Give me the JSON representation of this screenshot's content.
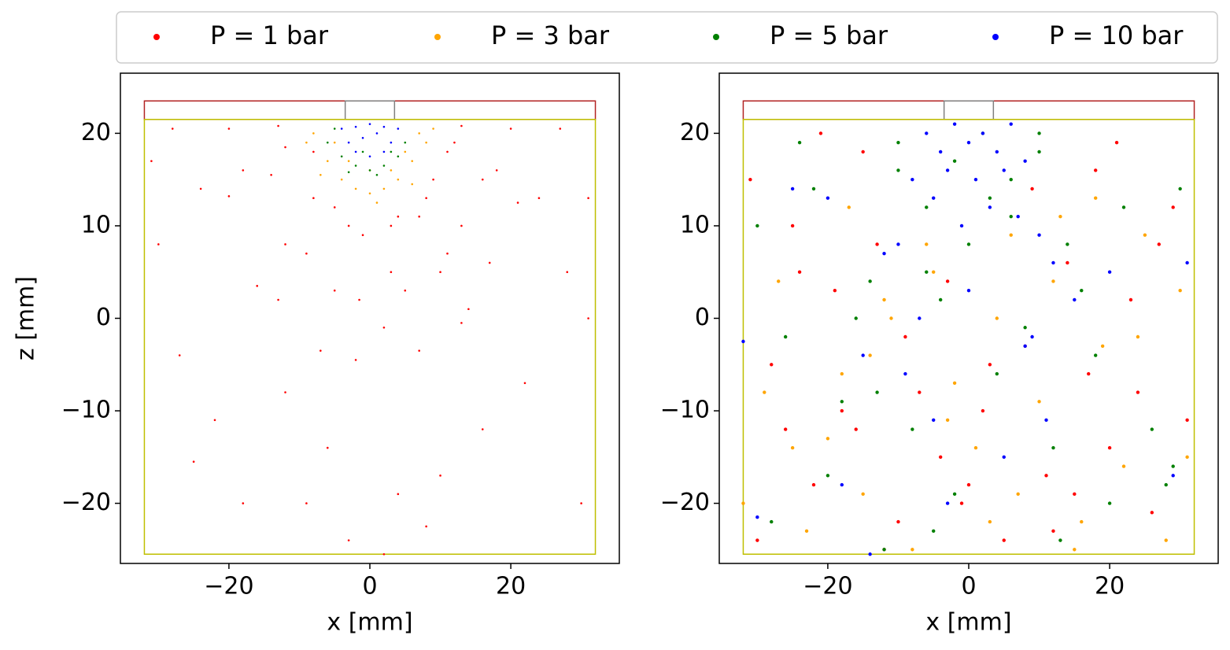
{
  "chart_data": [
    {
      "type": "scatter",
      "xlabel": "x [mm]",
      "ylabel": "z [mm]",
      "xlim": [
        -35.4,
        35.4
      ],
      "ylim": [
        -26.5,
        26.5
      ],
      "xticks": [
        {
          "value": -20,
          "label": "−20"
        },
        0,
        20
      ],
      "yticks": [
        {
          "value": -20,
          "label": "−20"
        },
        {
          "value": -10,
          "label": "−10"
        },
        0,
        10,
        20
      ],
      "outlines": [
        {
          "color": "#b22222",
          "x": [
            -32,
            32
          ],
          "y": [
            21.5,
            23.5
          ]
        },
        {
          "color": "#808080",
          "x": [
            -3.5,
            3.5
          ],
          "y": [
            21.5,
            23.5
          ]
        },
        {
          "color": "#bfbf00",
          "x": [
            -32,
            32
          ],
          "y": [
            -25.5,
            21.5
          ]
        }
      ],
      "series": [
        {
          "name": "P = 1 bar",
          "color": "#ff0000",
          "x": [
            -24,
            -18,
            -12,
            -20,
            -14,
            -8,
            -16,
            -12,
            -8,
            -13,
            -9,
            -5,
            -7,
            -5,
            -3,
            -2,
            -1.5,
            -1,
            2,
            3,
            4,
            7,
            5,
            3,
            13,
            10,
            7,
            14,
            11,
            8,
            17,
            13,
            9,
            21,
            16,
            11,
            24,
            18,
            12,
            27,
            20,
            13,
            -28,
            -20,
            -13,
            -30,
            -27,
            -25,
            -22,
            -18,
            -12,
            -6,
            4,
            8,
            16,
            22,
            28,
            31,
            30,
            -3,
            2,
            -31,
            31,
            10,
            -9
          ],
          "values": [
            14,
            16,
            18.5,
            13.2,
            15.5,
            18,
            3.5,
            8,
            13,
            2,
            7,
            12,
            -3.5,
            3,
            10,
            -4.5,
            2,
            9,
            -1,
            5,
            11,
            -3.5,
            3,
            10,
            -0.5,
            5,
            11,
            1,
            7,
            13,
            6,
            10,
            15,
            12.5,
            15,
            18,
            13,
            16,
            19,
            20.5,
            20.5,
            20.8,
            20.5,
            20.5,
            20.8,
            8,
            -4,
            -15.5,
            -11,
            -20,
            -8,
            -14,
            -19,
            -22.5,
            -12,
            -7,
            5,
            0,
            -20,
            -24,
            -25.5,
            17,
            13,
            -17,
            -20
          ]
        },
        {
          "name": "P = 3 bar",
          "color": "#ffa500",
          "x": [
            -8,
            -6,
            -4,
            -2,
            0,
            2,
            4,
            6,
            8,
            9,
            -9,
            7,
            -5,
            5,
            0,
            -3,
            3,
            -7,
            6,
            1
          ],
          "values": [
            20,
            17,
            15,
            14,
            13.5,
            14,
            15,
            17,
            19,
            20.5,
            19,
            20,
            19,
            18,
            16,
            17,
            16,
            15.5,
            14.5,
            12.5
          ]
        },
        {
          "name": "P = 5 bar",
          "color": "#008000",
          "x": [
            -6,
            -4,
            -2,
            0,
            2,
            4,
            5,
            -5,
            3,
            -1,
            1,
            -3
          ],
          "values": [
            19,
            17.5,
            16.5,
            16,
            16.5,
            17.5,
            19,
            20.5,
            18,
            18,
            15.5,
            15.8
          ]
        },
        {
          "name": "P = 10 bar",
          "color": "#0000ff",
          "x": [
            -4,
            -3,
            -2,
            0,
            2,
            3,
            4,
            -1,
            1,
            0,
            -2,
            2
          ],
          "values": [
            20.5,
            19,
            18,
            17.5,
            18,
            19,
            20.5,
            19.5,
            20,
            21,
            20.7,
            20.7
          ]
        }
      ]
    },
    {
      "type": "scatter",
      "xlabel": "x [mm]",
      "xlim": [
        -35.4,
        35.4
      ],
      "ylim": [
        -26.5,
        26.5
      ],
      "xticks": [
        {
          "value": -20,
          "label": "−20"
        },
        0,
        20
      ],
      "yticks": [
        {
          "value": -20,
          "label": "−20"
        },
        {
          "value": -10,
          "label": "−10"
        },
        0,
        10,
        20
      ],
      "outlines": [
        {
          "color": "#b22222",
          "x": [
            -32,
            32
          ],
          "y": [
            21.5,
            23.5
          ]
        },
        {
          "color": "#808080",
          "x": [
            -3.5,
            3.5
          ],
          "y": [
            21.5,
            23.5
          ]
        },
        {
          "color": "#bfbf00",
          "x": [
            -32,
            32
          ],
          "y": [
            -25.5,
            21.5
          ]
        }
      ],
      "series": [
        {
          "name": "P = 1 bar",
          "color": "#ff0000",
          "x": [
            -31,
            -28,
            -25,
            -22,
            -19,
            -16,
            -13,
            -10,
            -7,
            -4,
            -1,
            2,
            5,
            8,
            11,
            14,
            17,
            20,
            23,
            26,
            29,
            31,
            -30,
            -26,
            -21,
            -15,
            -9,
            -3,
            3,
            9,
            15,
            21,
            27,
            -24,
            -12,
            0,
            12,
            24,
            -18,
            18
          ],
          "values": [
            15,
            -5,
            10,
            -18,
            3,
            -12,
            8,
            -22,
            -8,
            -15,
            -20,
            -10,
            -24,
            -3,
            -17,
            6,
            -6,
            -14,
            2,
            -21,
            12,
            -11,
            -24,
            -12,
            20,
            18,
            -2,
            4,
            -5,
            14,
            -19,
            19,
            8,
            5,
            -25,
            -18,
            -23,
            -8,
            -10,
            16
          ]
        },
        {
          "name": "P = 3 bar",
          "color": "#ffa500",
          "x": [
            -32,
            -29,
            -27,
            -23,
            -20,
            -17,
            -14,
            -11,
            -8,
            -5,
            -2,
            1,
            4,
            7,
            10,
            13,
            16,
            19,
            22,
            25,
            28,
            31,
            -25,
            -18,
            -12,
            -6,
            6,
            12,
            18,
            24,
            -15,
            -3,
            3,
            15,
            30
          ],
          "values": [
            -20,
            -8,
            4,
            -23,
            -13,
            12,
            -4,
            0,
            -25,
            5,
            -7,
            -14,
            0,
            -19,
            -9,
            11,
            -22,
            -3,
            -16,
            9,
            -24,
            -15,
            -14,
            -6,
            2,
            8,
            9,
            4,
            13,
            -2,
            -19,
            -11,
            -22,
            -25,
            3
          ]
        },
        {
          "name": "P = 5 bar",
          "color": "#008000",
          "x": [
            -30,
            -26,
            -22,
            -18,
            -14,
            -10,
            -6,
            -2,
            2,
            6,
            10,
            14,
            18,
            22,
            26,
            30,
            -28,
            -20,
            -12,
            -4,
            4,
            12,
            20,
            28,
            -16,
            -8,
            0,
            8,
            16,
            -24,
            -2,
            3,
            -6,
            6,
            -10,
            10,
            -13,
            13,
            29,
            -5
          ],
          "values": [
            10,
            -2,
            14,
            -9,
            4,
            19,
            12,
            17,
            20,
            15,
            18,
            8,
            -4,
            12,
            -12,
            14,
            -22,
            -17,
            -25,
            2,
            -6,
            -14,
            -20,
            -18,
            0,
            -12,
            8,
            -1,
            3,
            19,
            -19,
            13,
            5,
            11,
            16,
            20,
            -8,
            -24,
            -16,
            -23
          ]
        },
        {
          "name": "P = 10 bar",
          "color": "#0000ff",
          "x": [
            -6,
            -4,
            -2,
            0,
            2,
            4,
            6,
            8,
            -8,
            -3,
            1,
            5,
            -5,
            3,
            -1,
            7,
            10,
            -10,
            12,
            -12,
            0,
            -7,
            9,
            -15,
            15,
            -20,
            20,
            -25,
            29,
            -32,
            -30,
            -18,
            -9,
            -5,
            -3,
            5,
            8,
            -14,
            11,
            31
          ],
          "values": [
            20,
            18,
            21,
            19,
            20,
            18,
            21,
            17,
            15,
            16,
            15,
            16,
            13,
            12,
            10,
            11,
            9,
            8,
            6,
            7,
            3,
            0,
            -2,
            -4,
            2,
            13,
            5,
            14,
            -17,
            -2.5,
            -21.5,
            -18,
            -6,
            -11,
            -20,
            -15,
            -3,
            -25.5,
            -11,
            6
          ]
        }
      ]
    }
  ]
}
